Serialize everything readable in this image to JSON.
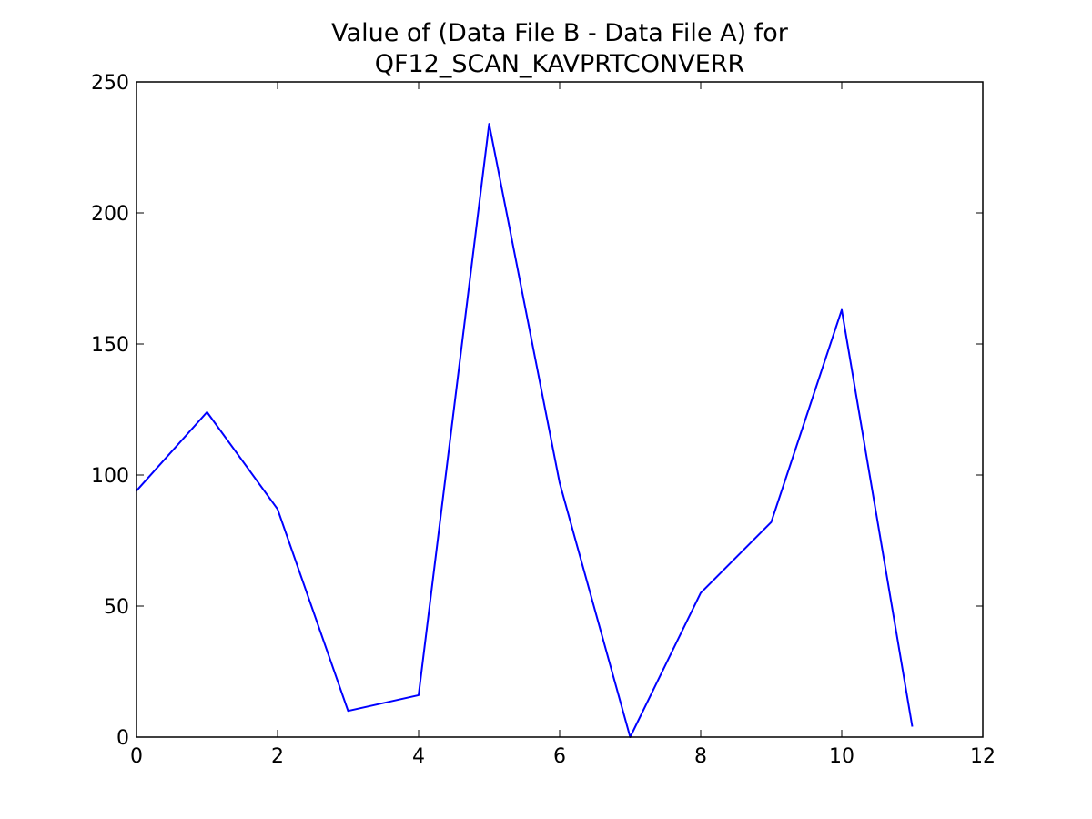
{
  "chart_data": {
    "type": "line",
    "title": [
      "Value of (Data File B - Data File A) for",
      "QF12_SCAN_KAVPRTCONVERR"
    ],
    "x": [
      0,
      1,
      2,
      3,
      4,
      5,
      6,
      7,
      8,
      9,
      10,
      11
    ],
    "values": [
      94,
      124,
      87,
      10,
      16,
      234,
      97,
      0,
      55,
      82,
      163,
      4
    ],
    "color": "#0000ff",
    "xlim": [
      0,
      12
    ],
    "xticks": [
      0,
      2,
      4,
      6,
      8,
      10,
      12
    ],
    "ylim": [
      0,
      250
    ],
    "yticks": [
      0,
      50,
      100,
      150,
      200,
      250
    ],
    "grid": false
  }
}
